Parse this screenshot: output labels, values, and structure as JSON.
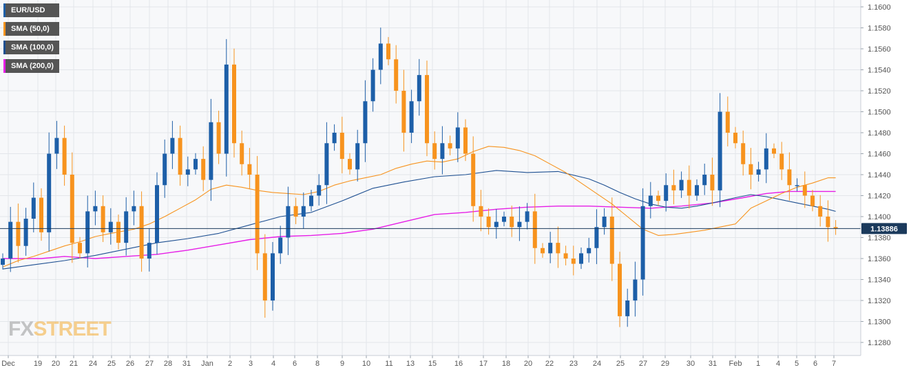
{
  "legend": {
    "items": [
      {
        "label": "EUR/USD",
        "color": "#1d5fa8"
      },
      {
        "label": "SMA (50,0)",
        "color": "#f7931e"
      },
      {
        "label": "SMA (100,0)",
        "color": "#1d4f91"
      },
      {
        "label": "SMA (200,0)",
        "color": "#e61ee6"
      }
    ]
  },
  "watermark": {
    "part1": "FX",
    "part2": "STREET"
  },
  "chart_data": {
    "type": "candlestick",
    "ylim": [
      1.127,
      1.1605
    ],
    "y_ticks": [
      "1.1600",
      "1.1580",
      "1.1560",
      "1.1540",
      "1.1520",
      "1.1500",
      "1.1480",
      "1.1460",
      "1.1440",
      "1.1420",
      "1.1400",
      "1.1380",
      "1.1360",
      "1.1340",
      "1.1320",
      "1.1300",
      "1.1280"
    ],
    "x_labels": [
      "Dec",
      "19",
      "20",
      "21",
      "24",
      "25",
      "26",
      "27",
      "28",
      "31",
      "Jan",
      "2",
      "3",
      "4",
      "6",
      "8",
      "9",
      "10",
      "11",
      "13",
      "15",
      "16",
      "17",
      "18",
      "20",
      "22",
      "23",
      "24",
      "25",
      "27",
      "29",
      "30",
      "31",
      "Feb",
      "1",
      "4",
      "5",
      "6",
      "7"
    ],
    "last_price": "1.13886",
    "last_value": 1.13886,
    "colors": {
      "up": "#1d5fa8",
      "down": "#f7931e",
      "sma50": "#f7931e",
      "sma100": "#1d4f91",
      "sma200": "#e61ee6",
      "grid": "#e3e6ea",
      "bg": "#f7f8fa",
      "price_line": "#1b3a5c"
    },
    "anchors": [
      1.136,
      1.1395,
      1.1372,
      1.1398,
      1.1418,
      1.1385,
      1.146,
      1.1475,
      1.144,
      1.1375,
      1.1365,
      1.1405,
      1.141,
      1.1385,
      1.1395,
      1.1375,
      1.1405,
      1.141,
      1.136,
      1.1375,
      1.143,
      1.146,
      1.1475,
      1.144,
      1.1445,
      1.1455,
      1.1435,
      1.149,
      1.146,
      1.1545,
      1.147,
      1.145,
      1.144,
      1.1365,
      1.132,
      1.1365,
      1.138,
      1.141,
      1.14,
      1.141,
      1.142,
      1.143,
      1.147,
      1.148,
      1.1455,
      1.1445,
      1.147,
      1.151,
      1.154,
      1.1565,
      1.155,
      1.152,
      1.148,
      1.151,
      1.1535,
      1.147,
      1.1455,
      1.147,
      1.1465,
      1.1485,
      1.146,
      1.141,
      1.14,
      1.139,
      1.1395,
      1.14,
      1.139,
      1.1395,
      1.1405,
      1.137,
      1.1365,
      1.1375,
      1.1365,
      1.136,
      1.1355,
      1.1365,
      1.137,
      1.139,
      1.14,
      1.1355,
      1.1305,
      1.132,
      1.134,
      1.141,
      1.142,
      1.1415,
      1.143,
      1.1425,
      1.1435,
      1.142,
      1.143,
      1.144,
      1.1425,
      1.15,
      1.148,
      1.147,
      1.145,
      1.144,
      1.1445,
      1.1465,
      1.146,
      1.1445,
      1.143,
      1.143,
      1.142,
      1.141,
      1.14,
      1.139,
      1.13886
    ],
    "sma50": [
      [
        0,
        1.1352
      ],
      [
        2,
        1.1358
      ],
      [
        4,
        1.1362
      ],
      [
        6,
        1.1367
      ],
      [
        8,
        1.1372
      ],
      [
        10,
        1.1376
      ],
      [
        12,
        1.1381
      ],
      [
        14,
        1.1384
      ],
      [
        17,
        1.1388
      ],
      [
        19,
        1.1393
      ],
      [
        21,
        1.14
      ],
      [
        23,
        1.1408
      ],
      [
        25,
        1.1416
      ],
      [
        27,
        1.1426
      ],
      [
        29,
        1.143
      ],
      [
        31,
        1.1428
      ],
      [
        33,
        1.1425
      ],
      [
        35,
        1.1423
      ],
      [
        37,
        1.1422
      ],
      [
        39,
        1.1421
      ],
      [
        41,
        1.1424
      ],
      [
        43,
        1.143
      ],
      [
        45,
        1.1434
      ],
      [
        47,
        1.1437
      ],
      [
        49,
        1.144
      ],
      [
        51,
        1.1446
      ],
      [
        53,
        1.145
      ],
      [
        55,
        1.1453
      ],
      [
        57,
        1.1452
      ],
      [
        59,
        1.1455
      ],
      [
        61,
        1.1462
      ],
      [
        63,
        1.1467
      ],
      [
        65,
        1.1466
      ],
      [
        67,
        1.1463
      ],
      [
        69,
        1.1458
      ],
      [
        71,
        1.145
      ],
      [
        73,
        1.1442
      ],
      [
        75,
        1.1432
      ],
      [
        77,
        1.1422
      ],
      [
        79,
        1.1412
      ],
      [
        81,
        1.14
      ],
      [
        83,
        1.1388
      ],
      [
        85,
        1.1382
      ],
      [
        87,
        1.1383
      ],
      [
        89,
        1.1385
      ],
      [
        91,
        1.1387
      ],
      [
        93,
        1.139
      ],
      [
        95,
        1.1393
      ],
      [
        97,
        1.1408
      ],
      [
        99,
        1.1415
      ],
      [
        101,
        1.1422
      ],
      [
        103,
        1.1428
      ],
      [
        105,
        1.1432
      ],
      [
        107,
        1.1437
      ],
      [
        108,
        1.1437
      ]
    ],
    "sma100": [
      [
        0,
        1.135
      ],
      [
        4,
        1.1354
      ],
      [
        8,
        1.1358
      ],
      [
        12,
        1.1363
      ],
      [
        16,
        1.1369
      ],
      [
        20,
        1.1375
      ],
      [
        24,
        1.1379
      ],
      [
        28,
        1.1384
      ],
      [
        32,
        1.1392
      ],
      [
        36,
        1.14
      ],
      [
        40,
        1.1404
      ],
      [
        44,
        1.1415
      ],
      [
        48,
        1.1427
      ],
      [
        52,
        1.1433
      ],
      [
        56,
        1.1438
      ],
      [
        60,
        1.144
      ],
      [
        64,
        1.1444
      ],
      [
        68,
        1.1442
      ],
      [
        72,
        1.1443
      ],
      [
        76,
        1.1436
      ],
      [
        78,
        1.143
      ],
      [
        80,
        1.1423
      ],
      [
        82,
        1.1417
      ],
      [
        84,
        1.1412
      ],
      [
        86,
        1.1409
      ],
      [
        88,
        1.1408
      ],
      [
        90,
        1.141
      ],
      [
        92,
        1.1413
      ],
      [
        95,
        1.1418
      ],
      [
        97,
        1.1421
      ],
      [
        99,
        1.1419
      ],
      [
        101,
        1.1416
      ],
      [
        103,
        1.1413
      ],
      [
        105,
        1.141
      ],
      [
        107,
        1.1407
      ],
      [
        108,
        1.1405
      ]
    ],
    "sma200": [
      [
        0,
        1.136
      ],
      [
        5,
        1.136
      ],
      [
        8,
        1.1362
      ],
      [
        12,
        1.136
      ],
      [
        16,
        1.1362
      ],
      [
        20,
        1.1364
      ],
      [
        24,
        1.1368
      ],
      [
        28,
        1.1373
      ],
      [
        32,
        1.1378
      ],
      [
        36,
        1.1381
      ],
      [
        40,
        1.1382
      ],
      [
        44,
        1.1384
      ],
      [
        48,
        1.1388
      ],
      [
        52,
        1.1395
      ],
      [
        56,
        1.1402
      ],
      [
        60,
        1.1404
      ],
      [
        64,
        1.1407
      ],
      [
        68,
        1.1409
      ],
      [
        72,
        1.141
      ],
      [
        76,
        1.141
      ],
      [
        80,
        1.1409
      ],
      [
        84,
        1.1408
      ],
      [
        88,
        1.141
      ],
      [
        92,
        1.1413
      ],
      [
        96,
        1.1418
      ],
      [
        99,
        1.1422
      ],
      [
        102,
        1.1424
      ],
      [
        105,
        1.1424
      ],
      [
        108,
        1.1424
      ]
    ]
  }
}
